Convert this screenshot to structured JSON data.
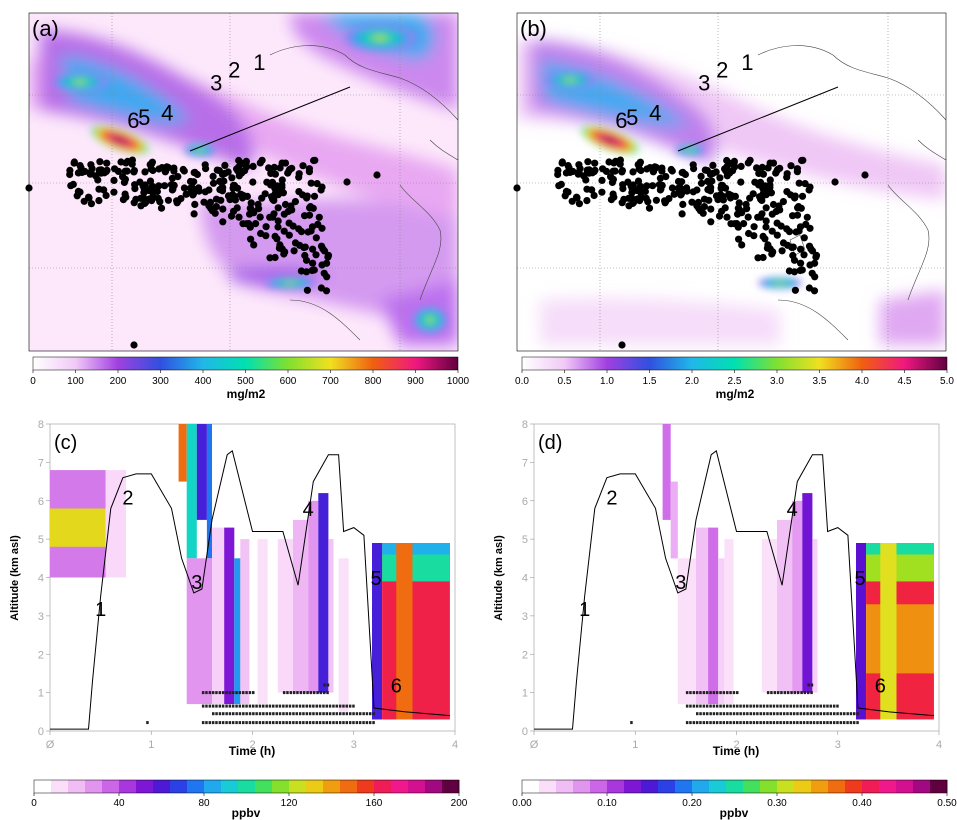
{
  "panels": [
    {
      "id": "a",
      "label": "(a)",
      "type": "map",
      "track_labels": [
        {
          "t": "1",
          "lon": -28.0,
          "lat": 65.4
        },
        {
          "t": "2",
          "lon": -31.5,
          "lat": 64.5
        },
        {
          "t": "3",
          "lon": -34.0,
          "lat": 63.0
        },
        {
          "t": "4",
          "lon": -40.8,
          "lat": 59.5
        },
        {
          "t": "5",
          "lon": -44.0,
          "lat": 59.0
        },
        {
          "t": "6",
          "lon": -45.5,
          "lat": 58.6
        }
      ],
      "colorbar": {
        "ticks": [
          "0",
          "100",
          "200",
          "300",
          "400",
          "500",
          "600",
          "700",
          "800",
          "900",
          "1000"
        ],
        "unit": "mg/m2"
      }
    },
    {
      "id": "b",
      "label": "(b)",
      "type": "map",
      "track_labels": [
        {
          "t": "1",
          "lon": -28.0,
          "lat": 65.4
        },
        {
          "t": "2",
          "lon": -31.5,
          "lat": 64.5
        },
        {
          "t": "3",
          "lon": -34.0,
          "lat": 63.0
        },
        {
          "t": "4",
          "lon": -40.8,
          "lat": 59.5
        },
        {
          "t": "5",
          "lon": -44.0,
          "lat": 59.0
        },
        {
          "t": "6",
          "lon": -45.5,
          "lat": 58.6
        }
      ],
      "colorbar": {
        "ticks": [
          "0.0",
          "0.5",
          "1.0",
          "1.5",
          "2.0",
          "2.5",
          "3.0",
          "3.5",
          "4.0",
          "4.5",
          "5.0"
        ],
        "unit": "mg/m2"
      }
    },
    {
      "id": "c",
      "label": "(c)",
      "type": "curtain",
      "xlabel": "Time (h)",
      "ylabel": "Altitude (km asl)",
      "xticks": [
        "Ø",
        "1",
        "2",
        "3",
        "4"
      ],
      "yticks": [
        "0",
        "1",
        "2",
        "3",
        "4",
        "5",
        "6",
        "7",
        "8"
      ],
      "colorbar": {
        "ticks": [
          "0",
          "40",
          "80",
          "120",
          "160",
          "200"
        ],
        "unit": "ppbv"
      }
    },
    {
      "id": "d",
      "label": "(d)",
      "type": "curtain",
      "xlabel": "Time (h)",
      "ylabel": "Altitude (km asl)",
      "xticks": [
        "Ø",
        "1",
        "2",
        "3",
        "4"
      ],
      "yticks": [
        "0",
        "1",
        "2",
        "3",
        "4",
        "5",
        "6",
        "7",
        "8"
      ],
      "colorbar": {
        "ticks": [
          "0.00",
          "0.10",
          "0.20",
          "0.30",
          "0.40",
          "0.50"
        ],
        "unit": "ppbv"
      }
    }
  ],
  "chart_data": [
    {
      "type": "heatmap",
      "panel": "a",
      "title": "",
      "colorbar_range": [
        0,
        1000
      ],
      "unit": "mg/m2"
    },
    {
      "type": "heatmap",
      "panel": "b",
      "title": "",
      "colorbar_range": [
        0.0,
        5.0
      ],
      "unit": "mg/m2"
    },
    {
      "type": "heatmap",
      "panel": "c",
      "xlabel": "Time (h)",
      "ylabel": "Altitude (km asl)",
      "xlim": [
        0,
        4
      ],
      "ylim": [
        0,
        8
      ],
      "colorbar_range": [
        0,
        200
      ],
      "unit": "ppbv",
      "flight_altitude": {
        "x": [
          0,
          0.38,
          0.42,
          0.5,
          0.6,
          0.72,
          0.85,
          1.0,
          1.2,
          1.3,
          1.42,
          1.5,
          1.6,
          1.75,
          1.8,
          2.0,
          2.2,
          2.3,
          2.45,
          2.6,
          2.75,
          2.85,
          2.9,
          3.0,
          3.1,
          3.2,
          3.5,
          3.95
        ],
        "y": [
          0.05,
          0.05,
          1.3,
          3.5,
          5.8,
          6.6,
          6.7,
          6.7,
          5.8,
          4.5,
          3.6,
          3.7,
          5.5,
          7.2,
          7.3,
          5.2,
          5.2,
          5.2,
          3.8,
          6.5,
          7.2,
          7.2,
          5.2,
          5.3,
          5.1,
          0.6,
          0.5,
          0.4
        ]
      },
      "track_labels": [
        {
          "t": "1",
          "x": 0.5,
          "y": 3.0
        },
        {
          "t": "2",
          "x": 0.77,
          "y": 5.9
        },
        {
          "t": "3",
          "x": 1.45,
          "y": 3.7
        },
        {
          "t": "4",
          "x": 2.55,
          "y": 5.6
        },
        {
          "t": "5",
          "x": 3.22,
          "y": 3.8
        },
        {
          "t": "6",
          "x": 3.42,
          "y": 1.0
        }
      ],
      "blocks": [
        {
          "x": [
            0,
            0.55
          ],
          "y": [
            4.0,
            5.8
          ],
          "v": 130
        },
        {
          "x": [
            0,
            0.55
          ],
          "y": [
            4.0,
            4.8
          ],
          "v": 30
        },
        {
          "x": [
            0,
            0.55
          ],
          "y": [
            5.8,
            6.8
          ],
          "v": 30
        },
        {
          "x": [
            0.55,
            0.75
          ],
          "y": [
            4.0,
            6.8
          ],
          "v": 10
        },
        {
          "x": [
            1.27,
            1.35
          ],
          "y": [
            6.5,
            8
          ],
          "v": 150
        },
        {
          "x": [
            1.35,
            1.45
          ],
          "y": [
            4.5,
            8
          ],
          "v": 95
        },
        {
          "x": [
            1.45,
            1.55
          ],
          "y": [
            5.5,
            8
          ],
          "v": 60
        },
        {
          "x": [
            1.55,
            1.6
          ],
          "y": [
            4.5,
            8
          ],
          "v": 75
        },
        {
          "x": [
            1.35,
            1.6
          ],
          "y": [
            0.7,
            4.5
          ],
          "v": 25
        },
        {
          "x": [
            1.6,
            1.72
          ],
          "y": [
            0.7,
            5.3
          ],
          "v": 12
        },
        {
          "x": [
            1.72,
            1.82
          ],
          "y": [
            0.7,
            5.3
          ],
          "v": 50
        },
        {
          "x": [
            1.82,
            1.88
          ],
          "y": [
            0.7,
            4.5
          ],
          "v": 80
        },
        {
          "x": [
            1.88,
            1.97
          ],
          "y": [
            0.7,
            5.0
          ],
          "v": 15
        },
        {
          "x": [
            2.05,
            2.15
          ],
          "y": [
            0.7,
            5.0
          ],
          "v": 8
        },
        {
          "x": [
            2.25,
            2.4
          ],
          "y": [
            1.0,
            5.0
          ],
          "v": 10
        },
        {
          "x": [
            2.4,
            2.55
          ],
          "y": [
            1.0,
            5.5
          ],
          "v": 18
        },
        {
          "x": [
            2.55,
            2.65
          ],
          "y": [
            1.0,
            6.0
          ],
          "v": 25
        },
        {
          "x": [
            2.65,
            2.75
          ],
          "y": [
            1.0,
            6.2
          ],
          "v": 60
        },
        {
          "x": [
            2.75,
            2.8
          ],
          "y": [
            1.0,
            5.0
          ],
          "v": 15
        },
        {
          "x": [
            2.85,
            2.95
          ],
          "y": [
            0.5,
            4.5
          ],
          "v": 8
        },
        {
          "x": [
            3.18,
            3.28
          ],
          "y": [
            0.3,
            4.9
          ],
          "v": 60
        },
        {
          "x": [
            3.28,
            3.95
          ],
          "y": [
            0.3,
            4.9
          ],
          "v": 165
        },
        {
          "x": [
            3.28,
            3.95
          ],
          "y": [
            3.9,
            4.6
          ],
          "v": 100
        },
        {
          "x": [
            3.28,
            3.95
          ],
          "y": [
            4.6,
            4.9
          ],
          "v": 85
        },
        {
          "x": [
            3.42,
            3.58
          ],
          "y": [
            0.3,
            4.9
          ],
          "v": 150
        }
      ]
    },
    {
      "type": "heatmap",
      "panel": "d",
      "xlabel": "Time (h)",
      "ylabel": "Altitude (km asl)",
      "xlim": [
        0,
        4
      ],
      "ylim": [
        0,
        8
      ],
      "colorbar_range": [
        0.0,
        0.5
      ],
      "unit": "ppbv",
      "flight_altitude": {
        "x": [
          0,
          0.38,
          0.42,
          0.5,
          0.6,
          0.72,
          0.85,
          1.0,
          1.2,
          1.3,
          1.42,
          1.5,
          1.6,
          1.75,
          1.8,
          2.0,
          2.2,
          2.3,
          2.45,
          2.6,
          2.75,
          2.85,
          2.9,
          3.0,
          3.1,
          3.2,
          3.5,
          3.95
        ],
        "y": [
          0.05,
          0.05,
          1.3,
          3.5,
          5.8,
          6.6,
          6.7,
          6.7,
          5.8,
          4.5,
          3.6,
          3.7,
          5.5,
          7.2,
          7.3,
          5.2,
          5.2,
          5.2,
          3.8,
          6.5,
          7.2,
          7.2,
          5.2,
          5.3,
          5.1,
          0.6,
          0.5,
          0.4
        ]
      },
      "track_labels": [
        {
          "t": "1",
          "x": 0.5,
          "y": 3.0
        },
        {
          "t": "2",
          "x": 0.77,
          "y": 5.9
        },
        {
          "t": "3",
          "x": 1.45,
          "y": 3.7
        },
        {
          "t": "4",
          "x": 2.55,
          "y": 5.6
        },
        {
          "t": "5",
          "x": 3.22,
          "y": 3.8
        },
        {
          "t": "6",
          "x": 3.42,
          "y": 1.0
        }
      ],
      "blocks": [
        {
          "x": [
            1.27,
            1.35
          ],
          "y": [
            5.5,
            8
          ],
          "v": 0.08
        },
        {
          "x": [
            1.35,
            1.42
          ],
          "y": [
            4.5,
            6.5
          ],
          "v": 0.05
        },
        {
          "x": [
            1.42,
            1.6
          ],
          "y": [
            0.7,
            4.5
          ],
          "v": 0.02
        },
        {
          "x": [
            1.6,
            1.72
          ],
          "y": [
            0.7,
            5.3
          ],
          "v": 0.04
        },
        {
          "x": [
            1.72,
            1.82
          ],
          "y": [
            0.7,
            5.3
          ],
          "v": 0.08
        },
        {
          "x": [
            1.82,
            1.88
          ],
          "y": [
            0.7,
            4.5
          ],
          "v": 0.03
        },
        {
          "x": [
            1.88,
            1.97
          ],
          "y": [
            0.7,
            5.0
          ],
          "v": 0.02
        },
        {
          "x": [
            2.25,
            2.4
          ],
          "y": [
            1.0,
            5.0
          ],
          "v": 0.02
        },
        {
          "x": [
            2.4,
            2.55
          ],
          "y": [
            1.0,
            5.5
          ],
          "v": 0.04
        },
        {
          "x": [
            2.55,
            2.65
          ],
          "y": [
            1.0,
            6.0
          ],
          "v": 0.06
        },
        {
          "x": [
            2.65,
            2.75
          ],
          "y": [
            1.0,
            6.2
          ],
          "v": 0.13
        },
        {
          "x": [
            2.75,
            2.8
          ],
          "y": [
            1.0,
            5.0
          ],
          "v": 0.03
        },
        {
          "x": [
            3.18,
            3.28
          ],
          "y": [
            0.3,
            4.9
          ],
          "v": 0.14
        },
        {
          "x": [
            3.28,
            3.95
          ],
          "y": [
            0.3,
            4.9
          ],
          "v": 0.36
        },
        {
          "x": [
            3.28,
            3.95
          ],
          "y": [
            0.3,
            1.5
          ],
          "v": 0.41
        },
        {
          "x": [
            3.28,
            3.95
          ],
          "y": [
            3.3,
            3.9
          ],
          "v": 0.41
        },
        {
          "x": [
            3.28,
            3.95
          ],
          "y": [
            3.9,
            4.6
          ],
          "v": 0.3
        },
        {
          "x": [
            3.28,
            3.95
          ],
          "y": [
            4.6,
            4.9
          ],
          "v": 0.25
        },
        {
          "x": [
            3.42,
            3.58
          ],
          "y": [
            0.3,
            4.9
          ],
          "v": 0.32
        }
      ]
    }
  ]
}
